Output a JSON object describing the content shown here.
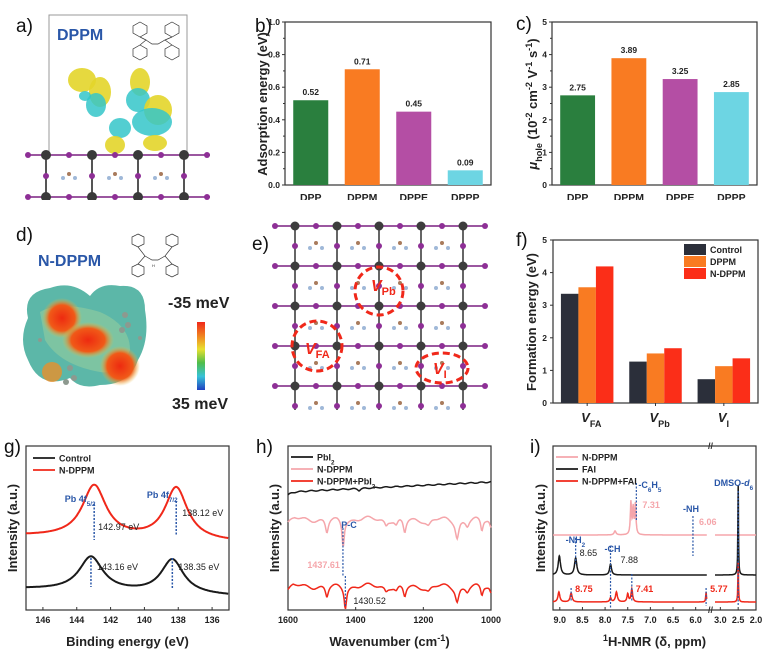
{
  "panels": {
    "a": {
      "label": "a)",
      "title": "DPPM"
    },
    "b": {
      "label": "b)"
    },
    "c": {
      "label": "c)"
    },
    "d": {
      "label": "d)",
      "title": "N-DPPM",
      "scale_top": "-35 meV",
      "scale_bottom": "35 meV",
      "nh_label": "H"
    },
    "e": {
      "label": "e)",
      "defects": [
        {
          "main": "V",
          "sub": "Pb"
        },
        {
          "main": "V",
          "sub": "FA"
        },
        {
          "main": "V",
          "sub": "I"
        }
      ]
    },
    "f": {
      "label": "f)"
    },
    "g": {
      "label": "g)"
    },
    "h": {
      "label": "h)"
    },
    "i": {
      "label": "i)"
    }
  },
  "chart_data": [
    {
      "id": "b",
      "type": "bar",
      "title": "",
      "xlabel": "",
      "ylabel": "Adsorption energy (eV)",
      "categories": [
        "DPP",
        "DPPM",
        "DPPE",
        "DPPP"
      ],
      "values": [
        0.52,
        0.71,
        0.45,
        0.09
      ],
      "data_labels": [
        "0.52",
        "0.71",
        "0.45",
        "0.09"
      ],
      "colors": [
        "#2a7f3e",
        "#f97b22",
        "#b44ea4",
        "#6dd5e3"
      ],
      "ylim": [
        0,
        1.0
      ],
      "yticks": [
        "0.0",
        "0.2",
        "0.4",
        "0.6",
        "0.8",
        "1.0"
      ],
      "grid": false
    },
    {
      "id": "c",
      "type": "bar",
      "title": "",
      "xlabel": "",
      "ylabel": "μhole (10-2 cm-2 V-1 s-1)",
      "ylabel_parts": {
        "mu": "μ",
        "sub": "hole",
        "rest": "(10",
        "e1": "-2",
        "u1": " cm",
        "e2": "-2",
        "u2": " V",
        "e3": "-1",
        "u3": " s",
        "e4": "-1",
        "close": ")"
      },
      "categories": [
        "DPP",
        "DPPM",
        "DPPE",
        "DPPP"
      ],
      "values": [
        2.75,
        3.89,
        3.25,
        2.85
      ],
      "data_labels": [
        "2.75",
        "3.89",
        "3.25",
        "2.85"
      ],
      "colors": [
        "#2a7f3e",
        "#f97b22",
        "#b44ea4",
        "#6dd5e3"
      ],
      "ylim": [
        0,
        5
      ],
      "yticks": [
        "0",
        "1",
        "2",
        "3",
        "4",
        "5"
      ],
      "grid": false
    },
    {
      "id": "f",
      "type": "bar",
      "title": "",
      "xlabel": "",
      "ylabel": "Formation energy (eV)",
      "categories": [
        {
          "main": "V",
          "sub": "FA"
        },
        {
          "main": "V",
          "sub": "Pb"
        },
        {
          "main": "V",
          "sub": "I"
        }
      ],
      "series": [
        {
          "name": "Control",
          "color": "#2b2f3a",
          "values": [
            3.35,
            1.27,
            0.73
          ]
        },
        {
          "name": "DPPM",
          "color": "#f97b22",
          "values": [
            3.55,
            1.52,
            1.13
          ]
        },
        {
          "name": "N-DPPM",
          "color": "#fb2e18",
          "values": [
            4.19,
            1.68,
            1.37
          ]
        }
      ],
      "ylim": [
        0,
        5
      ],
      "yticks": [
        "0",
        "1",
        "2",
        "3",
        "4",
        "5"
      ],
      "legend": "top-right",
      "grid": false
    },
    {
      "id": "g",
      "type": "line",
      "title": "",
      "xlabel": "Binding energy (eV)",
      "ylabel": "Intensity (a.u.)",
      "xlim": [
        147,
        135
      ],
      "xticks": [
        "146",
        "144",
        "142",
        "140",
        "138",
        "136"
      ],
      "legend": "top-left",
      "series": [
        {
          "name": "Control",
          "color": "#1a1a1a",
          "peaks": [
            143.16,
            138.35
          ]
        },
        {
          "name": "N-DPPM",
          "color": "#f0281a",
          "peaks": [
            142.97,
            138.12
          ]
        }
      ],
      "annotations": [
        {
          "text": "Pb 4f",
          "sub": "5/2",
          "color": "#2a57a8"
        },
        {
          "text": "Pb 4f",
          "sub": "7/2",
          "color": "#2a57a8"
        },
        {
          "text": "142.97 eV"
        },
        {
          "text": "138.12 eV"
        },
        {
          "text": "143.16 eV"
        },
        {
          "text": "138.35 eV"
        }
      ]
    },
    {
      "id": "h",
      "type": "line",
      "title": "",
      "xlabel": "Wavenumber (cm-1)",
      "xlabel_parts": {
        "main": "Wavenumber (cm",
        "sup": "-1",
        "close": ")"
      },
      "ylabel": "Intensity (a.u.)",
      "xlim": [
        1600,
        1000
      ],
      "xticks": [
        "1600",
        "1400",
        "1200",
        "1000"
      ],
      "legend": "top-left",
      "series": [
        {
          "name": "PbI2",
          "name_main": "PbI",
          "name_sub": "2",
          "color": "#1a1a1a"
        },
        {
          "name": "N-DPPM",
          "color": "#f5a6ab",
          "peaks": [
            1437.61
          ]
        },
        {
          "name": "N-DPPM+PbI2",
          "name_main": "N-DPPM+PbI",
          "name_sub": "2",
          "color": "#f0281a",
          "peaks": [
            1430.52
          ]
        }
      ],
      "annotations": [
        {
          "text": "P-C",
          "color": "#2a57a8"
        },
        {
          "text": "1437.61",
          "color": "#f5a6ab"
        },
        {
          "text": "1430.52",
          "color": "#222222"
        }
      ]
    },
    {
      "id": "i",
      "type": "line",
      "title": "",
      "xlabel": "1H-NMR (δ, ppm)",
      "xlabel_parts": {
        "sup": "1",
        "main": "H-NMR (δ, ppm)"
      },
      "ylabel": "Intensity (a.u.)",
      "xticks": [
        "9.0",
        "8.5",
        "8.0",
        "7.5",
        "7.0",
        "6.5",
        "6.0",
        "3.0",
        "2.5",
        "2.0"
      ],
      "axis_break": "between 6.0 and 3.0",
      "legend": "top-left",
      "series": [
        {
          "name": "N-DPPM",
          "color": "#f5a6ab"
        },
        {
          "name": "FAI",
          "color": "#1a1a1a"
        },
        {
          "name": "N-DPPM+FAI",
          "color": "#f0281a"
        }
      ],
      "annotations": [
        {
          "text": "-C6H5",
          "color": "#2a57a8"
        },
        {
          "text": "7.31",
          "color": "#f5a6ab"
        },
        {
          "text": "-NH",
          "color": "#2a57a8"
        },
        {
          "text": "6.06",
          "color": "#f5a6ab"
        },
        {
          "text": "DMSO-d6",
          "color": "#2a57a8"
        },
        {
          "text": "-NH2",
          "color": "#2a57a8"
        },
        {
          "text": "8.65",
          "color": "#222222"
        },
        {
          "text": "-CH",
          "color": "#2a57a8"
        },
        {
          "text": "7.88",
          "color": "#222222"
        },
        {
          "text": "8.75",
          "color": "#f0281a"
        },
        {
          "text": "7.41",
          "color": "#f0281a"
        },
        {
          "text": "5.77",
          "color": "#f0281a"
        }
      ]
    }
  ]
}
